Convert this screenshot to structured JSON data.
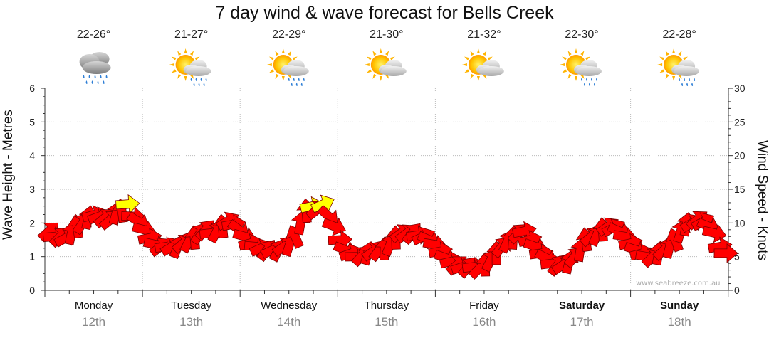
{
  "title": "7 day wind & wave forecast for Bells Creek",
  "credit": "www.seabreeze.com.au",
  "days": [
    {
      "name": "Monday",
      "date": "12th",
      "temp": "22-26°",
      "icon": "rain-cloud-icon",
      "bold": false
    },
    {
      "name": "Tuesday",
      "date": "13th",
      "temp": "21-27°",
      "icon": "sun-cloud-showers-icon",
      "bold": false
    },
    {
      "name": "Wednesday",
      "date": "14th",
      "temp": "22-29°",
      "icon": "sun-cloud-showers-icon",
      "bold": false
    },
    {
      "name": "Thursday",
      "date": "15th",
      "temp": "21-30°",
      "icon": "sun-cloud-icon",
      "bold": false
    },
    {
      "name": "Friday",
      "date": "16th",
      "temp": "21-32°",
      "icon": "sun-cloud-icon",
      "bold": false
    },
    {
      "name": "Saturday",
      "date": "17th",
      "temp": "22-30°",
      "icon": "sun-cloud-showers-icon",
      "bold": true
    },
    {
      "name": "Sunday",
      "date": "18th",
      "temp": "22-28°",
      "icon": "sun-cloud-showers-icon",
      "bold": true
    }
  ],
  "chart_data": {
    "type": "line",
    "ylabel_left": "Wave Height - Metres",
    "ylabel_right": "Wind Speed - Knots",
    "ylim_left": [
      0,
      6
    ],
    "ylim_right": [
      0,
      30
    ],
    "yticks_left": [
      "0",
      "1",
      "2",
      "3",
      "4",
      "5",
      "6"
    ],
    "yticks_right": [
      "0",
      "5",
      "10",
      "15",
      "20",
      "25",
      "30"
    ],
    "grid": true,
    "series": [
      {
        "name": "",
        "unit": "knots",
        "marker": "wind-direction-arrow",
        "color": "#ff0000",
        "highlight_color": "#ffff00",
        "highlight_threshold": 12.5,
        "values": [
          8.8,
          8.0,
          8.0,
          7.8,
          8.5,
          9.5,
          10.0,
          10.8,
          11.2,
          11.0,
          10.8,
          10.5,
          11.5,
          11.8,
          12.8,
          11.0,
          10.2,
          9.0,
          7.8,
          6.8,
          6.5,
          6.5,
          6.5,
          6.5,
          7.0,
          7.3,
          7.8,
          8.5,
          9.0,
          8.5,
          8.8,
          9.5,
          10.3,
          9.8,
          9.0,
          8.0,
          7.0,
          6.5,
          6.3,
          6.0,
          6.0,
          6.0,
          6.5,
          6.8,
          8.0,
          10.0,
          11.8,
          12.5,
          12.0,
          12.8,
          11.0,
          9.5,
          7.5,
          6.0,
          5.5,
          5.0,
          5.2,
          5.5,
          5.8,
          6.0,
          6.2,
          6.8,
          7.8,
          8.5,
          8.5,
          8.5,
          8.2,
          8.0,
          7.5,
          6.8,
          5.8,
          4.8,
          4.3,
          3.8,
          3.5,
          3.5,
          3.5,
          3.3,
          3.8,
          4.5,
          5.5,
          6.5,
          7.3,
          7.8,
          8.5,
          8.8,
          7.5,
          6.5,
          5.5,
          4.8,
          4.0,
          3.8,
          3.8,
          4.2,
          5.0,
          6.0,
          7.5,
          8.0,
          8.3,
          9.0,
          9.5,
          9.3,
          8.8,
          8.0,
          7.0,
          6.0,
          5.5,
          5.0,
          5.0,
          5.5,
          6.0,
          6.5,
          7.5,
          8.8,
          9.8,
          10.0,
          10.5,
          10.2,
          9.5,
          8.5,
          6.5,
          5.5
        ]
      }
    ]
  }
}
